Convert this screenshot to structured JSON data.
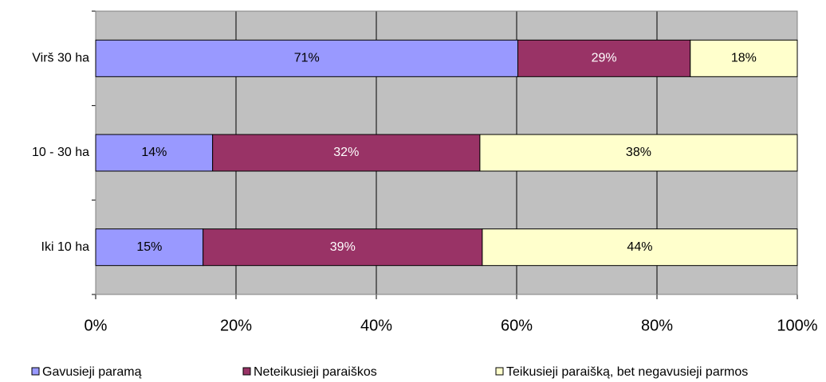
{
  "chart_data": {
    "type": "bar",
    "orientation": "horizontal",
    "stack": "percent",
    "categories": [
      "Virš 30 ha",
      "10 - 30 ha",
      "Iki 10 ha"
    ],
    "series": [
      {
        "name": "Gavusieji paramą",
        "color": "#9999ff",
        "values": [
          71,
          14,
          15
        ],
        "value_labels": [
          "71%",
          "14%",
          "15%"
        ]
      },
      {
        "name": "Neteikusieji paraiškos",
        "color": "#993366",
        "values": [
          29,
          32,
          39
        ],
        "value_labels": [
          "29%",
          "32%",
          "39%"
        ]
      },
      {
        "name": "Teikusieji paraišką, bet negavusieji parmos",
        "color": "#ffffcc",
        "values": [
          18,
          38,
          44
        ],
        "value_labels": [
          "18%",
          "38%",
          "44%"
        ]
      }
    ],
    "xlim": [
      0,
      100
    ],
    "xticks": [
      {
        "value": 0,
        "label": "0%"
      },
      {
        "value": 20,
        "label": "20%"
      },
      {
        "value": 40,
        "label": "40%"
      },
      {
        "value": 60,
        "label": "60%"
      },
      {
        "value": 80,
        "label": "80%"
      },
      {
        "value": 100,
        "label": "100%"
      }
    ],
    "grid": true,
    "legend": "bottom"
  }
}
